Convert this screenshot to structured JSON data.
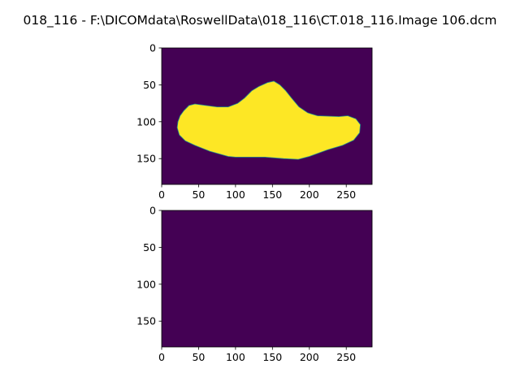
{
  "window": {
    "title": "018_116 - F:\\DICOMdata\\RoswellData\\018_116\\CT.018_116.Image 106.dcm"
  },
  "colors": {
    "background": "#440154",
    "foreground": "#fde725",
    "edge_teal": "#21918c",
    "axes_frame": "#000000"
  },
  "chart_data": [
    {
      "type": "heatmap",
      "name": "top-image",
      "colormap": "viridis",
      "xlim": [
        0,
        285
      ],
      "ylim": [
        185,
        0
      ],
      "xticks": [
        0,
        50,
        100,
        150,
        200,
        250
      ],
      "yticks": [
        0,
        50,
        100,
        150
      ],
      "xtick_labels": [
        "0",
        "50",
        "100",
        "150",
        "200",
        "250"
      ],
      "ytick_labels": [
        "0",
        "50",
        "100",
        "150"
      ],
      "mask_outline": [
        [
          22,
          100
        ],
        [
          25,
          92
        ],
        [
          30,
          85
        ],
        [
          37,
          78
        ],
        [
          45,
          76
        ],
        [
          60,
          78
        ],
        [
          75,
          80
        ],
        [
          90,
          80
        ],
        [
          103,
          75
        ],
        [
          112,
          68
        ],
        [
          122,
          58
        ],
        [
          132,
          52
        ],
        [
          143,
          47
        ],
        [
          152,
          45
        ],
        [
          160,
          50
        ],
        [
          168,
          58
        ],
        [
          176,
          68
        ],
        [
          186,
          80
        ],
        [
          198,
          88
        ],
        [
          211,
          92
        ],
        [
          240,
          93
        ],
        [
          252,
          92
        ],
        [
          263,
          96
        ],
        [
          269,
          104
        ],
        [
          268,
          115
        ],
        [
          260,
          125
        ],
        [
          245,
          132
        ],
        [
          225,
          138
        ],
        [
          200,
          147
        ],
        [
          185,
          151
        ],
        [
          165,
          150
        ],
        [
          140,
          148
        ],
        [
          120,
          148
        ],
        [
          100,
          148
        ],
        [
          90,
          147
        ],
        [
          65,
          140
        ],
        [
          45,
          132
        ],
        [
          32,
          126
        ],
        [
          24,
          118
        ],
        [
          21,
          108
        ]
      ],
      "mask_value": "foreground"
    },
    {
      "type": "heatmap",
      "name": "bottom-image",
      "colormap": "viridis",
      "xlim": [
        0,
        285
      ],
      "ylim": [
        185,
        0
      ],
      "xticks": [
        0,
        50,
        100,
        150,
        200,
        250
      ],
      "yticks": [
        0,
        50,
        100,
        150
      ],
      "xtick_labels": [
        "0",
        "50",
        "100",
        "150",
        "200",
        "250"
      ],
      "ytick_labels": [
        "0",
        "50",
        "100",
        "150"
      ],
      "mask_outline": [],
      "mask_value": "background"
    }
  ]
}
